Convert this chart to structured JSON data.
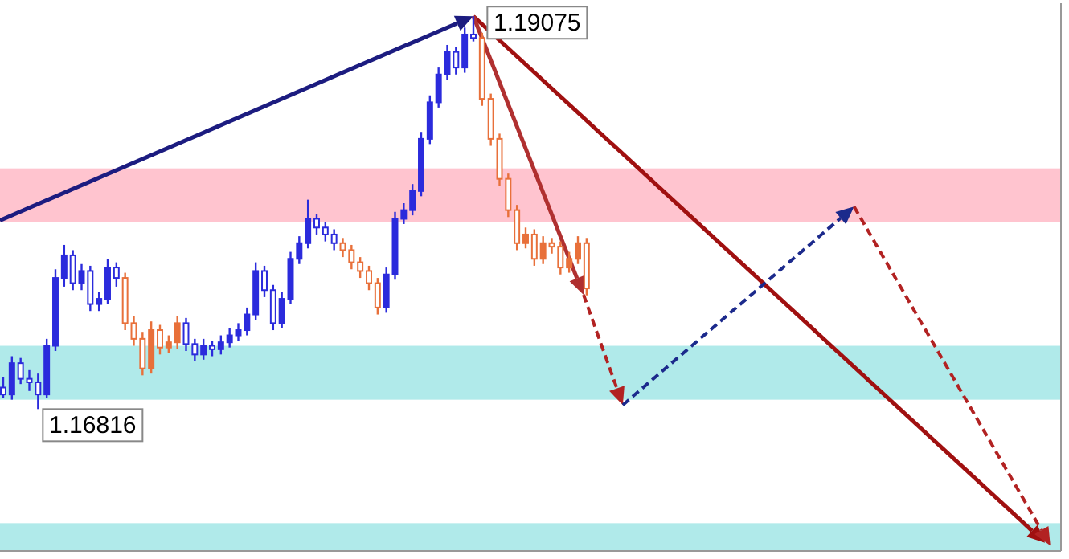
{
  "chart_data": {
    "type": "candlestick",
    "categories": [
      null,
      null,
      null,
      null,
      null,
      null,
      null,
      null,
      null,
      null,
      null,
      null,
      null,
      null,
      null,
      null,
      null,
      null,
      null,
      null,
      null,
      null,
      null,
      null,
      null,
      null,
      null,
      null,
      null,
      null,
      null,
      null,
      null,
      null,
      null,
      null,
      null,
      null,
      null,
      null,
      null,
      null,
      null,
      null,
      null,
      null,
      null,
      null,
      null,
      null,
      null,
      null,
      null,
      null,
      null,
      null,
      null,
      null,
      null,
      null,
      null,
      null,
      null,
      null,
      null,
      null,
      null,
      null,
      null,
      null,
      null,
      null,
      null,
      null,
      null,
      null,
      null,
      null,
      null,
      null,
      null,
      null,
      null,
      null,
      null,
      null,
      null,
      null,
      null,
      null,
      null,
      null,
      null,
      null,
      null,
      null,
      null,
      null,
      null,
      null,
      null,
      null,
      null,
      null,
      null,
      null,
      null,
      null,
      null,
      null,
      null,
      null,
      null,
      null,
      null,
      null,
      null,
      null,
      null,
      null,
      null
    ],
    "ylim": [
      1.16,
      1.1915
    ],
    "ohlc": [
      [
        1.1694,
        1.17,
        1.1688,
        1.169
      ],
      [
        1.169,
        1.1712,
        1.1687,
        1.1708
      ],
      [
        1.1708,
        1.1711,
        1.1696,
        1.1699
      ],
      [
        1.1699,
        1.1704,
        1.1692,
        1.1697
      ],
      [
        1.1697,
        1.1702,
        1.16816,
        1.169
      ],
      [
        1.169,
        1.1722,
        1.1688,
        1.1718
      ],
      [
        1.1718,
        1.1762,
        1.1715,
        1.1757
      ],
      [
        1.1757,
        1.1776,
        1.1752,
        1.177
      ],
      [
        1.177,
        1.1773,
        1.175,
        1.1754
      ],
      [
        1.1754,
        1.1765,
        1.175,
        1.1761
      ],
      [
        1.1761,
        1.1764,
        1.1738,
        1.1742
      ],
      [
        1.1742,
        1.1749,
        1.1738,
        1.1745
      ],
      [
        1.1745,
        1.1768,
        1.1742,
        1.1763
      ],
      [
        1.1763,
        1.1766,
        1.1752,
        1.1757
      ],
      [
        1.1757,
        1.176,
        1.1727,
        1.1731
      ],
      [
        1.1731,
        1.1735,
        1.1718,
        1.1722
      ],
      [
        1.1722,
        1.1726,
        1.1701,
        1.1705
      ],
      [
        1.1705,
        1.1732,
        1.1702,
        1.1727
      ],
      [
        1.1727,
        1.173,
        1.1713,
        1.1717
      ],
      [
        1.1717,
        1.1724,
        1.1714,
        1.172
      ],
      [
        1.172,
        1.1735,
        1.1716,
        1.1731
      ],
      [
        1.1731,
        1.1734,
        1.1715,
        1.1719
      ],
      [
        1.1719,
        1.1722,
        1.1709,
        1.1713
      ],
      [
        1.1713,
        1.1722,
        1.171,
        1.1718
      ],
      [
        1.1718,
        1.1721,
        1.1712,
        1.1716
      ],
      [
        1.1716,
        1.1724,
        1.1713,
        1.172
      ],
      [
        1.172,
        1.1728,
        1.1717,
        1.1724
      ],
      [
        1.1724,
        1.1731,
        1.1721,
        1.1727
      ],
      [
        1.1727,
        1.174,
        1.1724,
        1.1736
      ],
      [
        1.1736,
        1.1766,
        1.1733,
        1.1761
      ],
      [
        1.1761,
        1.1764,
        1.1746,
        1.175
      ],
      [
        1.175,
        1.1753,
        1.1727,
        1.1731
      ],
      [
        1.1731,
        1.1749,
        1.1728,
        1.1745
      ],
      [
        1.1745,
        1.1772,
        1.1742,
        1.1768
      ],
      [
        1.1768,
        1.1781,
        1.1765,
        1.1777
      ],
      [
        1.1777,
        1.1802,
        1.1774,
        1.1791
      ],
      [
        1.1791,
        1.1794,
        1.1782,
        1.1786
      ],
      [
        1.1786,
        1.1789,
        1.1778,
        1.1782
      ],
      [
        1.1782,
        1.1785,
        1.1773,
        1.1777
      ],
      [
        1.1777,
        1.178,
        1.1769,
        1.1773
      ],
      [
        1.1773,
        1.1776,
        1.1762,
        1.1766
      ],
      [
        1.1766,
        1.1769,
        1.1757,
        1.1761
      ],
      [
        1.1761,
        1.1764,
        1.175,
        1.1754
      ],
      [
        1.1754,
        1.1757,
        1.1736,
        1.174
      ],
      [
        1.174,
        1.1763,
        1.1737,
        1.1759
      ],
      [
        1.1759,
        1.1795,
        1.1756,
        1.1791
      ],
      [
        1.1791,
        1.18,
        1.1788,
        1.1796
      ],
      [
        1.1796,
        1.1811,
        1.1793,
        1.1807
      ],
      [
        1.1807,
        1.1841,
        1.1804,
        1.1837
      ],
      [
        1.1837,
        1.1862,
        1.1834,
        1.1858
      ],
      [
        1.1858,
        1.1878,
        1.1855,
        1.1874
      ],
      [
        1.1874,
        1.1891,
        1.1871,
        1.1887
      ],
      [
        1.1887,
        1.189,
        1.1874,
        1.1878
      ],
      [
        1.1878,
        1.1901,
        1.1875,
        1.1897
      ],
      [
        1.1897,
        1.19075,
        1.1893,
        1.1895
      ],
      [
        1.1895,
        1.1898,
        1.1856,
        1.186
      ],
      [
        1.186,
        1.1863,
        1.1833,
        1.1837
      ],
      [
        1.1837,
        1.184,
        1.181,
        1.1814
      ],
      [
        1.1814,
        1.1817,
        1.1792,
        1.1796
      ],
      [
        1.1796,
        1.1799,
        1.1773,
        1.1777
      ],
      [
        1.1777,
        1.1786,
        1.1774,
        1.1782
      ],
      [
        1.1782,
        1.1785,
        1.1764,
        1.1768
      ],
      [
        1.1768,
        1.1781,
        1.1765,
        1.1777
      ],
      [
        1.1777,
        1.178,
        1.1771,
        1.1775
      ],
      [
        1.1775,
        1.1778,
        1.1759,
        1.1763
      ],
      [
        1.1763,
        1.1772,
        1.176,
        1.1768
      ],
      [
        1.1768,
        1.1781,
        1.1765,
        1.1777
      ],
      [
        1.1777,
        1.178,
        1.1747,
        1.1751
      ],
      null,
      null,
      null,
      null,
      null,
      null,
      null,
      null,
      null,
      null,
      null,
      null,
      null,
      null,
      null,
      null,
      null,
      null,
      null,
      null,
      null,
      null,
      null,
      null,
      null,
      null,
      null,
      null,
      null,
      null,
      null,
      null,
      null,
      null,
      null,
      null,
      null,
      null,
      null,
      null,
      null,
      null,
      null,
      null,
      null,
      null,
      null,
      null,
      null,
      null,
      null,
      null,
      null
    ],
    "colors": [
      "#2b2bdc",
      "#2b2bdc",
      "#2b2bdc",
      "#2b2bdc",
      "#2b2bdc",
      "#2b2bdc",
      "#2b2bdc",
      "#2b2bdc",
      "#2b2bdc",
      "#2b2bdc",
      "#2b2bdc",
      "#2b2bdc",
      "#2b2bdc",
      "#2b2bdc",
      "#e8703a",
      "#e8703a",
      "#e8703a",
      "#e8703a",
      "#e8703a",
      "#e8703a",
      "#e8703a",
      "#2b2bdc",
      "#2b2bdc",
      "#2b2bdc",
      "#2b2bdc",
      "#2b2bdc",
      "#2b2bdc",
      "#2b2bdc",
      "#2b2bdc",
      "#2b2bdc",
      "#2b2bdc",
      "#2b2bdc",
      "#2b2bdc",
      "#2b2bdc",
      "#2b2bdc",
      "#2b2bdc",
      "#2b2bdc",
      "#2b2bdc",
      "#2b2bdc",
      "#e8703a",
      "#e8703a",
      "#e8703a",
      "#e8703a",
      "#e8703a",
      "#2b2bdc",
      "#2b2bdc",
      "#2b2bdc",
      "#2b2bdc",
      "#2b2bdc",
      "#2b2bdc",
      "#2b2bdc",
      "#2b2bdc",
      "#2b2bdc",
      "#2b2bdc",
      "#2b2bdc",
      "#e8703a",
      "#e8703a",
      "#e8703a",
      "#e8703a",
      "#e8703a",
      "#e8703a",
      "#e8703a",
      "#e8703a",
      "#e8703a",
      "#e8703a",
      "#e8703a",
      "#e8703a",
      "#e8703a",
      null,
      null,
      null,
      null,
      null,
      null,
      null,
      null,
      null,
      null,
      null,
      null,
      null,
      null,
      null,
      null,
      null,
      null,
      null,
      null,
      null,
      null,
      null,
      null,
      null,
      null,
      null,
      null,
      null,
      null,
      null,
      null,
      null,
      null,
      null,
      null,
      null,
      null,
      null,
      null,
      null,
      null,
      null,
      null,
      null,
      null,
      null,
      null,
      null,
      null,
      null,
      null,
      null
    ],
    "bands": [
      {
        "axis": "y",
        "from": 1.1789,
        "to": 1.182,
        "color": "#ffc4cf"
      },
      {
        "axis": "y",
        "from": 1.1687,
        "to": 1.1718,
        "color": "#b0eaea"
      },
      {
        "axis": "y",
        "from": 1.16,
        "to": 1.1616,
        "color": "#b0eaea"
      }
    ],
    "annotations": [
      "1.19075",
      "1.16816"
    ]
  }
}
